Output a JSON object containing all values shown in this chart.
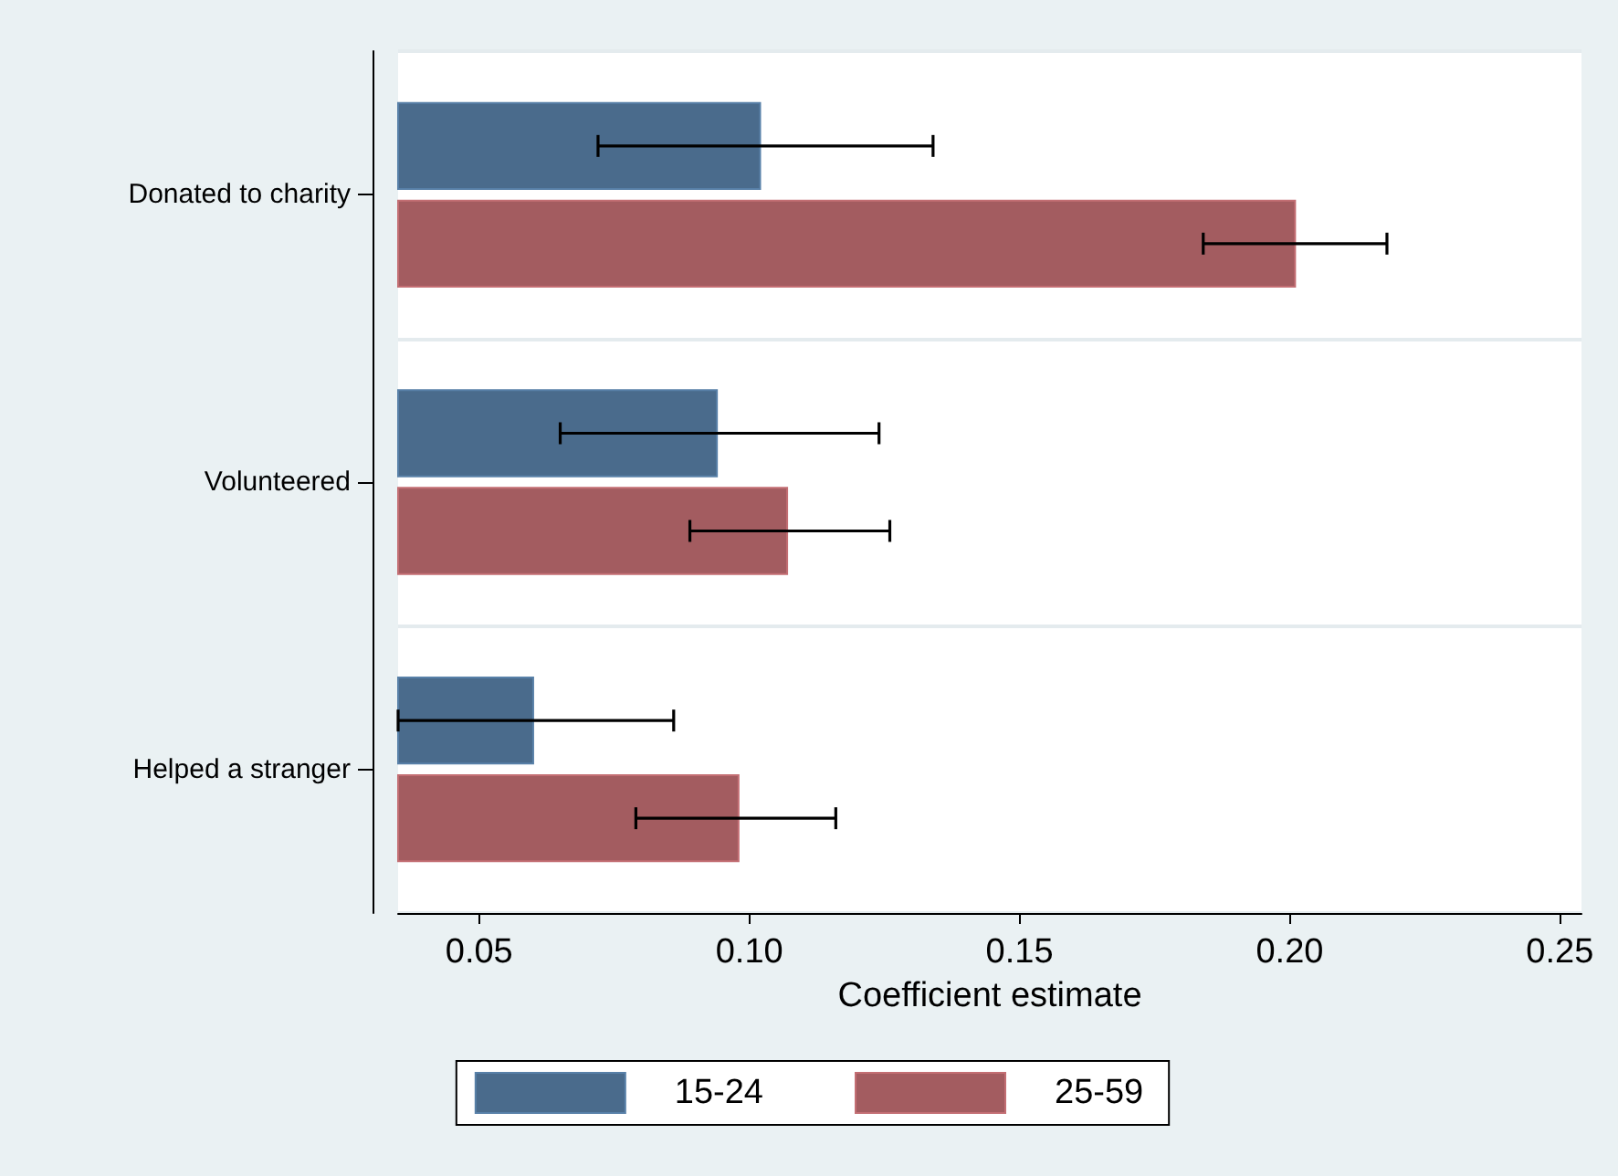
{
  "chart_data": {
    "type": "bar",
    "orientation": "horizontal",
    "xlabel": "Coefficient estimate",
    "categories": [
      "Donated to charity",
      "Volunteered",
      "Helped a stranger"
    ],
    "series": [
      {
        "name": "15-24",
        "color": "#4a6b8c",
        "values": [
          0.102,
          0.094,
          0.06
        ],
        "errors": [
          [
            0.072,
            0.134
          ],
          [
            0.065,
            0.124
          ],
          [
            0.035,
            0.086
          ]
        ]
      },
      {
        "name": "25-59",
        "color": "#a35c60",
        "values": [
          0.201,
          0.107,
          0.098
        ],
        "errors": [
          [
            0.184,
            0.218
          ],
          [
            0.089,
            0.126
          ],
          [
            0.079,
            0.116
          ]
        ]
      }
    ],
    "xlim": [
      0.035,
      0.254
    ],
    "xticks": [
      {
        "value": 0.05,
        "label": "0.05"
      },
      {
        "value": 0.1,
        "label": "0.10"
      },
      {
        "value": 0.15,
        "label": "0.15"
      },
      {
        "value": 0.2,
        "label": "0.20"
      },
      {
        "value": 0.25,
        "label": "0.25"
      }
    ],
    "grid": "y",
    "legend": "bottom"
  }
}
